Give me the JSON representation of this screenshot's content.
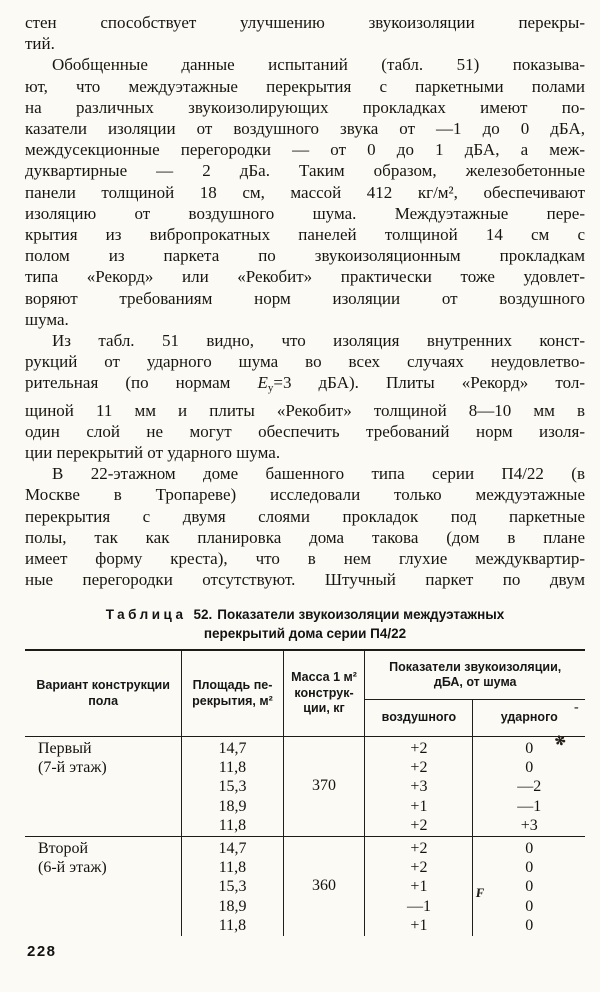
{
  "page": {
    "number": "228"
  },
  "body": {
    "p1_lines": [
      "стен способствует улучшению звукоизоляции перекры-",
      "тий."
    ],
    "p2_lines": [
      "Обобщенные данные испытаний (табл. 51) показыва-",
      "ют, что междуэтажные перекрытия с паркетными полами",
      "на различных звукоизолирующих прокладках имеют по-",
      "казатели изоляции от воздушного звука от —1 до 0 дБА,",
      "междусекционные перегородки — от 0 до 1 дБА, а меж-",
      "дуквартирные — 2 дБа. Таким образом, железобетонные",
      "панели толщиной 18 см, массой 412 кг/м², обеспечивают",
      "изоляцию от воздушного шума. Междуэтажные пере-",
      "крытия из вибропрокатных панелей толщиной 14 см с",
      "полом из паркета по звукоизоляционным прокладкам",
      "типа «Рекорд» или «Рекобит» практически тоже удовлет-",
      "воряют требованиям норм изоляции от воздушного",
      "шума."
    ],
    "p3": {
      "l1": "Из табл. 51 видно, что изоляция внутренних конст-",
      "l2": "рукций от ударного шума во всех случаях неудовлетво-",
      "l3_pre": "рительная (по нормам ",
      "l3_var": "E",
      "l3_sub": "у",
      "l3_post": "=3 дБА). Плиты «Рекорд» тол-",
      "l4": "щиной 11 мм и плиты «Рекобит» толщиной 8—10 мм в",
      "l5": "один слой не могут обеспечить требований норм изоля-",
      "l6": "ции перекрытий от ударного шума."
    },
    "p4_lines": [
      "В 22-этажном доме башенного типа серии П4/22 (в",
      "Москве в Тропареве) исследовали только междуэтажные",
      "перекрытия с двумя слоями прокладок под паркетные",
      "полы, так как планировка дома такова (дом в плане",
      "имеет форму креста), что в нем глухие междуквартир-",
      "ные перегородки отсутствуют. Штучный паркет по двум"
    ]
  },
  "table": {
    "caption": {
      "label": "Таблица",
      "num": "52.",
      "line1": "Показатели звукоизоляции междуэтажных",
      "line2": "перекрытий дома серии П4/22"
    },
    "headers": {
      "variant": "Вариант конструкции\nпола",
      "area": "Площадь пе-\nрекрытия, м²",
      "mass": "Масса 1 м²\nконструк-\nции, кг",
      "group": "Показатели звукоизоляции,\nдБА, от шума",
      "air": "воздушного",
      "impact": "ударного"
    },
    "rows": [
      {
        "variant_lines": [
          "Первый",
          "(7-й этаж)"
        ],
        "areas": [
          "14,7",
          "11,8",
          "15,3",
          "18,9",
          "11,8"
        ],
        "mass": "370",
        "air": [
          "+2",
          "+2",
          "+3",
          "+1",
          "+2"
        ],
        "impact": [
          "0",
          "0",
          "—2",
          "—1",
          "+3"
        ]
      },
      {
        "variant_lines": [
          "Второй",
          "(6-й этаж)"
        ],
        "areas": [
          "14,7",
          "11,8",
          "15,3",
          "18,9",
          "11,8"
        ],
        "mass": "360",
        "air": [
          "+2",
          "+2",
          "+1",
          "—1",
          "+1"
        ],
        "impact": [
          "0",
          "0",
          "0",
          "0",
          "0"
        ]
      }
    ]
  },
  "artifacts": {
    "marks": [
      "✻",
      "F",
      "-"
    ]
  }
}
